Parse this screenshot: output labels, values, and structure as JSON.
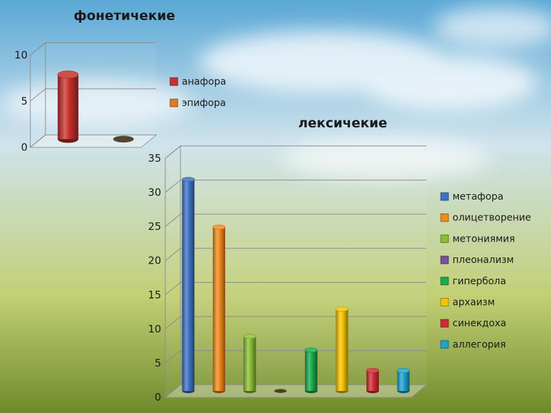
{
  "colors": {
    "sky_top": "#5ba8d6",
    "sky_mid": "#cfe3ec",
    "ground_mid": "#c2cf74",
    "ground_bottom": "#6f8a2a"
  },
  "chart_data": [
    {
      "type": "bar",
      "title": "фонетичекие",
      "categories": [
        "анафора",
        "эпифора"
      ],
      "values": [
        7,
        0
      ],
      "series_colors": [
        "#c8302b",
        "#e07b22"
      ],
      "legend": [
        "анафора",
        "эпифора"
      ],
      "legend_position": "right",
      "ylim": [
        0,
        10
      ],
      "yticks": [
        "0",
        "5",
        "10"
      ],
      "grid": true,
      "style": "3d-cylinder"
    },
    {
      "type": "bar",
      "title": "лексичекие",
      "categories": [
        "метафора",
        "олицетворение",
        "метониямия",
        "плеонализм",
        "гипербола",
        "архаизм",
        "синекдоха",
        "аллегория"
      ],
      "values": [
        31,
        24,
        8,
        0,
        6,
        12,
        3,
        3
      ],
      "series_colors": [
        "#3f72c4",
        "#f28a1d",
        "#8cbf36",
        "#7d4fa0",
        "#19ab4d",
        "#f6c400",
        "#d52b36",
        "#1fa3cf"
      ],
      "legend": [
        "метафора",
        "олицетворение",
        "метониямия",
        "плеонализм",
        "гипербола",
        "архаизм",
        "синекдоха",
        "аллегория"
      ],
      "legend_position": "right",
      "ylim": [
        0,
        35
      ],
      "yticks": [
        "0",
        "5",
        "10",
        "15",
        "20",
        "25",
        "30",
        "35"
      ],
      "grid": true,
      "style": "3d-cylinder"
    }
  ]
}
